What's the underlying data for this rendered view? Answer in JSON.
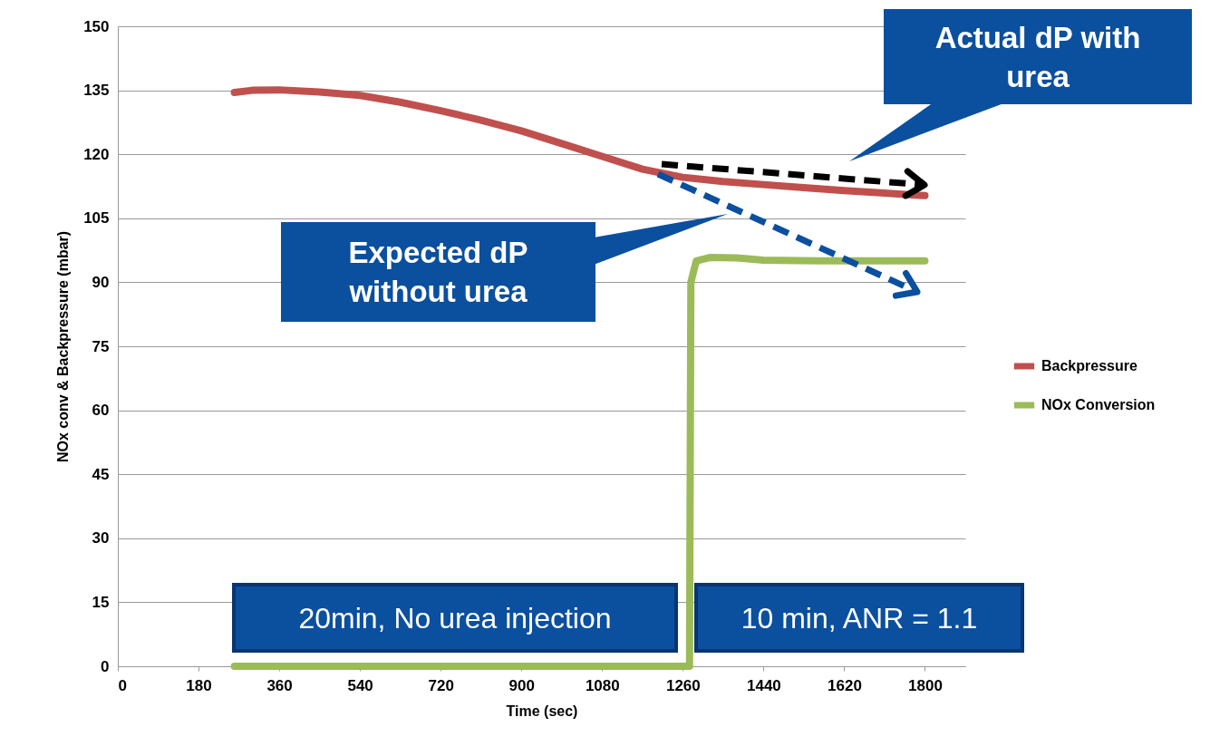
{
  "chart_data": {
    "type": "line",
    "xlabel": "Time (sec)",
    "ylabel": "NOx conv & Backpressure (mbar)",
    "xlim": [
      0,
      1890
    ],
    "xticks": [
      0,
      180,
      360,
      540,
      720,
      900,
      1080,
      1260,
      1440,
      1620,
      1800
    ],
    "ylim": [
      0,
      150
    ],
    "yticks": [
      0,
      15,
      30,
      45,
      60,
      75,
      90,
      105,
      120,
      135,
      150
    ],
    "grid": "y",
    "legend": "right",
    "line_style": "solid",
    "series": [
      {
        "name": "Backpressure",
        "color": "#c0504d",
        "x": [
          260,
          300,
          360,
          450,
          540,
          630,
          720,
          810,
          900,
          990,
          1080,
          1170,
          1260,
          1350,
          1440,
          1530,
          1620,
          1710,
          1800
        ],
        "values": [
          134.5,
          135,
          135.1,
          134.6,
          133.8,
          132.2,
          130.2,
          128,
          125.5,
          122.5,
          119.5,
          116.5,
          114.6,
          113.6,
          112.9,
          112.2,
          111.5,
          110.9,
          110.3
        ]
      },
      {
        "name": "NOx Conversion",
        "color": "#9bbb59",
        "x": [
          260,
          1275,
          1278,
          1290,
          1320,
          1380,
          1440,
          1560,
          1800
        ],
        "values": [
          0,
          0,
          90,
          95,
          95.8,
          95.7,
          95.2,
          95,
          95
        ]
      }
    ],
    "annotations": [
      "Actual dP with urea",
      "Expected dP without urea",
      "20min, No urea injection",
      "10 min, ANR = 1.1"
    ]
  }
}
